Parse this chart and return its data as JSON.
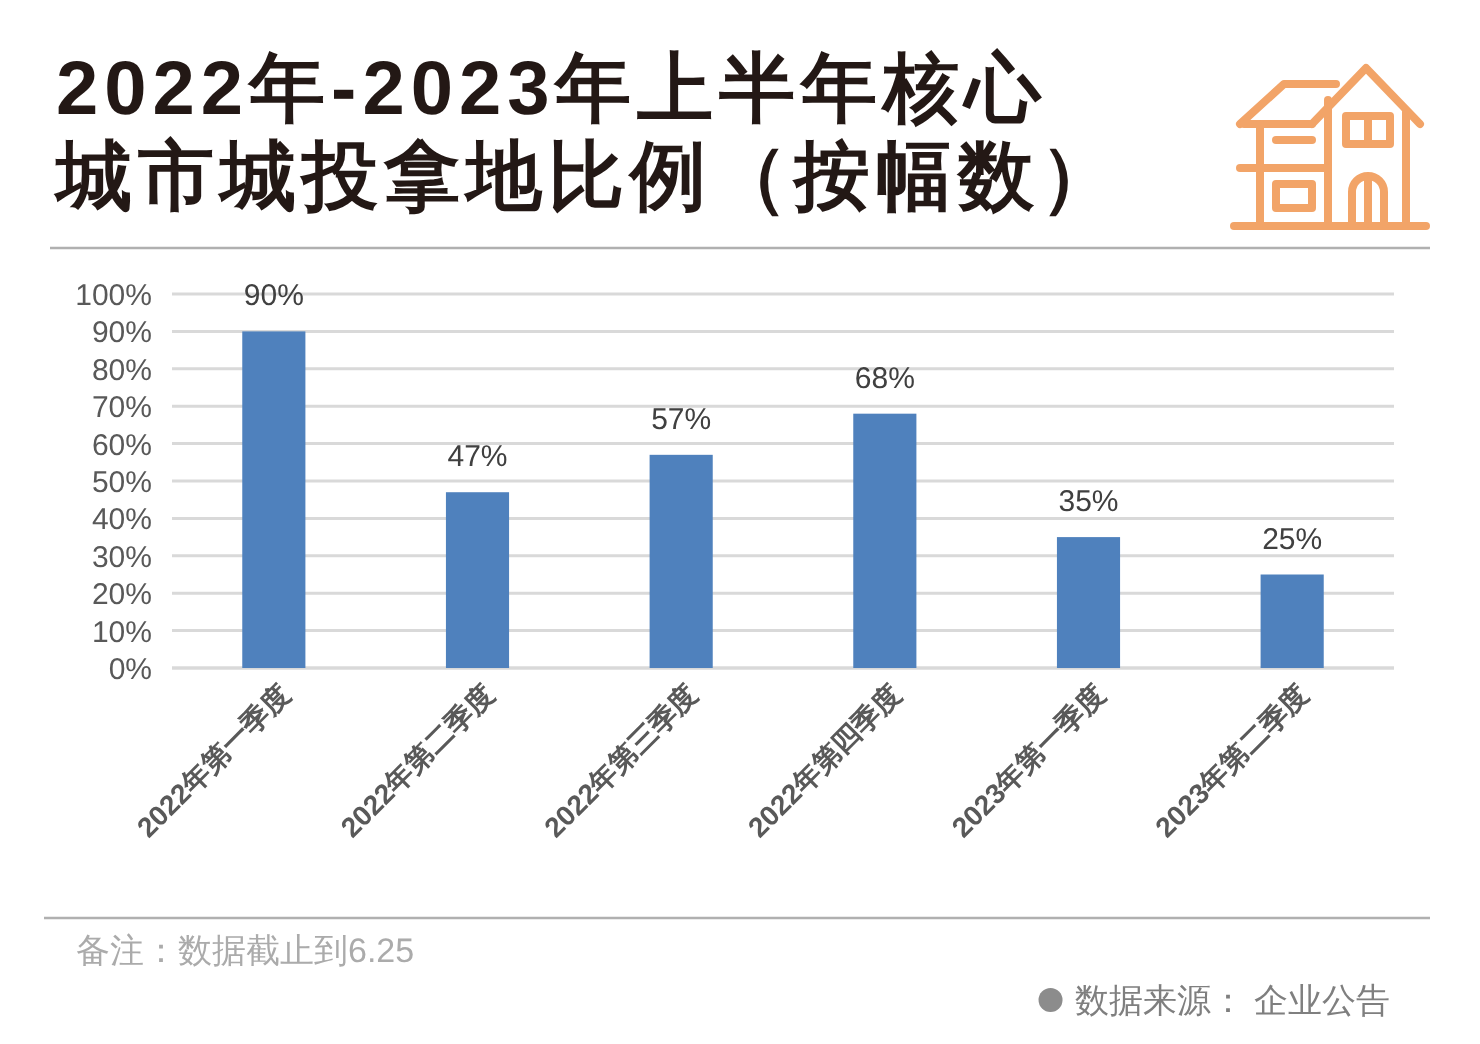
{
  "chart_data": {
    "type": "bar",
    "title": "2022年-2023年上半年核心城市城投拿地比例（按幅数）",
    "categories": [
      "2022年第一季度",
      "2022年第二季度",
      "2022年第三季度",
      "2022年第四季度",
      "2023年第一季度",
      "2023年第二季度"
    ],
    "values": [
      90,
      47,
      57,
      68,
      35,
      25
    ],
    "color": "#4f81bd",
    "value_labels": [
      "90%",
      "47%",
      "57%",
      "68%",
      "35%",
      "25%"
    ],
    "ylim": [
      0,
      100
    ],
    "yticks": [
      {
        "value": 0,
        "label": "0%"
      },
      {
        "value": 10,
        "label": "10%"
      },
      {
        "value": 20,
        "label": "20%"
      },
      {
        "value": 30,
        "label": "30%"
      },
      {
        "value": 40,
        "label": "40%"
      },
      {
        "value": 50,
        "label": "50%"
      },
      {
        "value": 60,
        "label": "60%"
      },
      {
        "value": 70,
        "label": "70%"
      },
      {
        "value": 80,
        "label": "80%"
      },
      {
        "value": 90,
        "label": "90%"
      },
      {
        "value": 100,
        "label": "100%"
      }
    ],
    "grid": "y",
    "annotations": [
      "备注：数据截止到6.25",
      "数据来源： 企业公告"
    ]
  }
}
